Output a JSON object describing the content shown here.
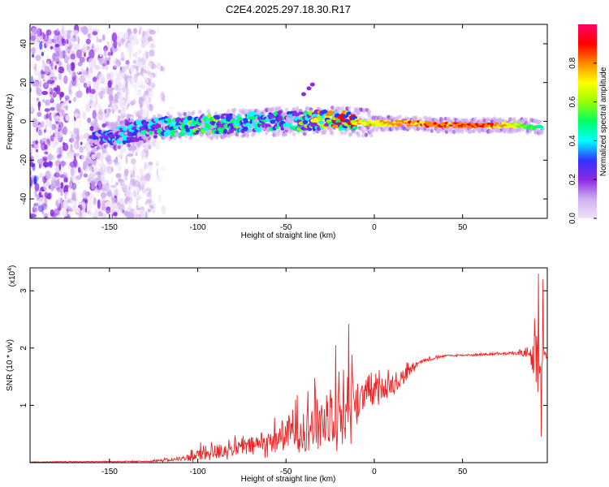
{
  "chart_data": [
    {
      "type": "heatmap",
      "title": "C2E4.2025.297.18.30.R17",
      "xlabel": "Height of straight line (km)",
      "ylabel": "Frequency (Hz)",
      "xlim": [
        -195,
        98
      ],
      "ylim": [
        -50,
        50
      ],
      "xticks": [
        -150,
        -100,
        -50,
        0,
        50
      ],
      "yticks": [
        -40,
        -20,
        0,
        20,
        40
      ],
      "colorbar": {
        "label": "Normalized spectral amplitude",
        "range": [
          0,
          1
        ],
        "ticks": [
          0.0,
          0.2,
          0.4,
          0.6,
          0.8
        ],
        "tick_labels": [
          "0.0",
          "0.2",
          "0.4",
          "0.6",
          "0.8"
        ],
        "colors": [
          "#f0e4f8",
          "#cfaef0",
          "#8a2be2",
          "#3333ff",
          "#00ffff",
          "#00ff66",
          "#99ff00",
          "#ffff00",
          "#ff8800",
          "#ff0000",
          "#ff0066"
        ]
      },
      "features": {
        "noise_region_x": [
          -195,
          -125
        ],
        "noise_region_y": [
          -50,
          48
        ],
        "ridge_points": [
          {
            "x": -160,
            "f": -8,
            "a": 0.25
          },
          {
            "x": -140,
            "f": -6,
            "a": 0.3
          },
          {
            "x": -120,
            "f": -3,
            "a": 0.35
          },
          {
            "x": -100,
            "f": -2,
            "a": 0.4
          },
          {
            "x": -80,
            "f": -1,
            "a": 0.4
          },
          {
            "x": -60,
            "f": 0,
            "a": 0.35
          },
          {
            "x": -40,
            "f": 0,
            "a": 0.4
          },
          {
            "x": -25,
            "f": 1,
            "a": 0.6
          },
          {
            "x": -15,
            "f": 0,
            "a": 0.75
          },
          {
            "x": 0,
            "f": -1,
            "a": 0.8
          },
          {
            "x": 20,
            "f": -1,
            "a": 0.85
          },
          {
            "x": 40,
            "f": -2,
            "a": 0.9
          },
          {
            "x": 60,
            "f": -2,
            "a": 0.95
          },
          {
            "x": 80,
            "f": -2,
            "a": 0.7
          },
          {
            "x": 95,
            "f": -3,
            "a": 0.5
          }
        ]
      }
    },
    {
      "type": "line",
      "xlabel": "Height of straight line (km)",
      "ylabel": "SNR (10 * v/v)",
      "multiplier": "(x10",
      "multiplier_exp": "4",
      "multiplier_close": ")",
      "xlim": [
        -195,
        98
      ],
      "ylim": [
        0,
        3.4
      ],
      "xticks": [
        -150,
        -100,
        -50,
        0,
        50
      ],
      "yticks": [
        1,
        2,
        3
      ],
      "color": "#ee2222",
      "series": [
        {
          "name": "SNR",
          "envelope": [
            {
              "x": -195,
              "base": 0.01,
              "amp": 0.01
            },
            {
              "x": -130,
              "base": 0.02,
              "amp": 0.02
            },
            {
              "x": -110,
              "base": 0.05,
              "amp": 0.08
            },
            {
              "x": -95,
              "base": 0.12,
              "amp": 0.35
            },
            {
              "x": -80,
              "base": 0.2,
              "amp": 0.3
            },
            {
              "x": -60,
              "base": 0.3,
              "amp": 0.45
            },
            {
              "x": -45,
              "base": 0.45,
              "amp": 0.8
            },
            {
              "x": -30,
              "base": 0.6,
              "amp": 1.1
            },
            {
              "x": -20,
              "base": 0.7,
              "amp": 1.2
            },
            {
              "x": -14,
              "base": 0.8,
              "amp": 1.5
            },
            {
              "x": -5,
              "base": 1.1,
              "amp": 0.5
            },
            {
              "x": 5,
              "base": 1.25,
              "amp": 0.45
            },
            {
              "x": 15,
              "base": 1.4,
              "amp": 0.4
            },
            {
              "x": 25,
              "base": 1.75,
              "amp": 0.08
            },
            {
              "x": 40,
              "base": 1.86,
              "amp": 0.04
            },
            {
              "x": 60,
              "base": 1.88,
              "amp": 0.04
            },
            {
              "x": 80,
              "base": 1.9,
              "amp": 0.06
            },
            {
              "x": 88,
              "base": 1.9,
              "amp": 0.15
            },
            {
              "x": 92,
              "base": 1.5,
              "amp": 1.5
            },
            {
              "x": 96,
              "base": 1.85,
              "amp": 0.3
            },
            {
              "x": 98,
              "base": 1.85,
              "amp": 0.05
            }
          ],
          "spikes": [
            {
              "x": -14.5,
              "y": 2.42
            },
            {
              "x": -22,
              "y": 2.05
            },
            {
              "x": 93,
              "y": 3.3
            },
            {
              "x": 94.5,
              "y": 0.45
            },
            {
              "x": 95.5,
              "y": 3.2
            }
          ]
        }
      ]
    }
  ]
}
